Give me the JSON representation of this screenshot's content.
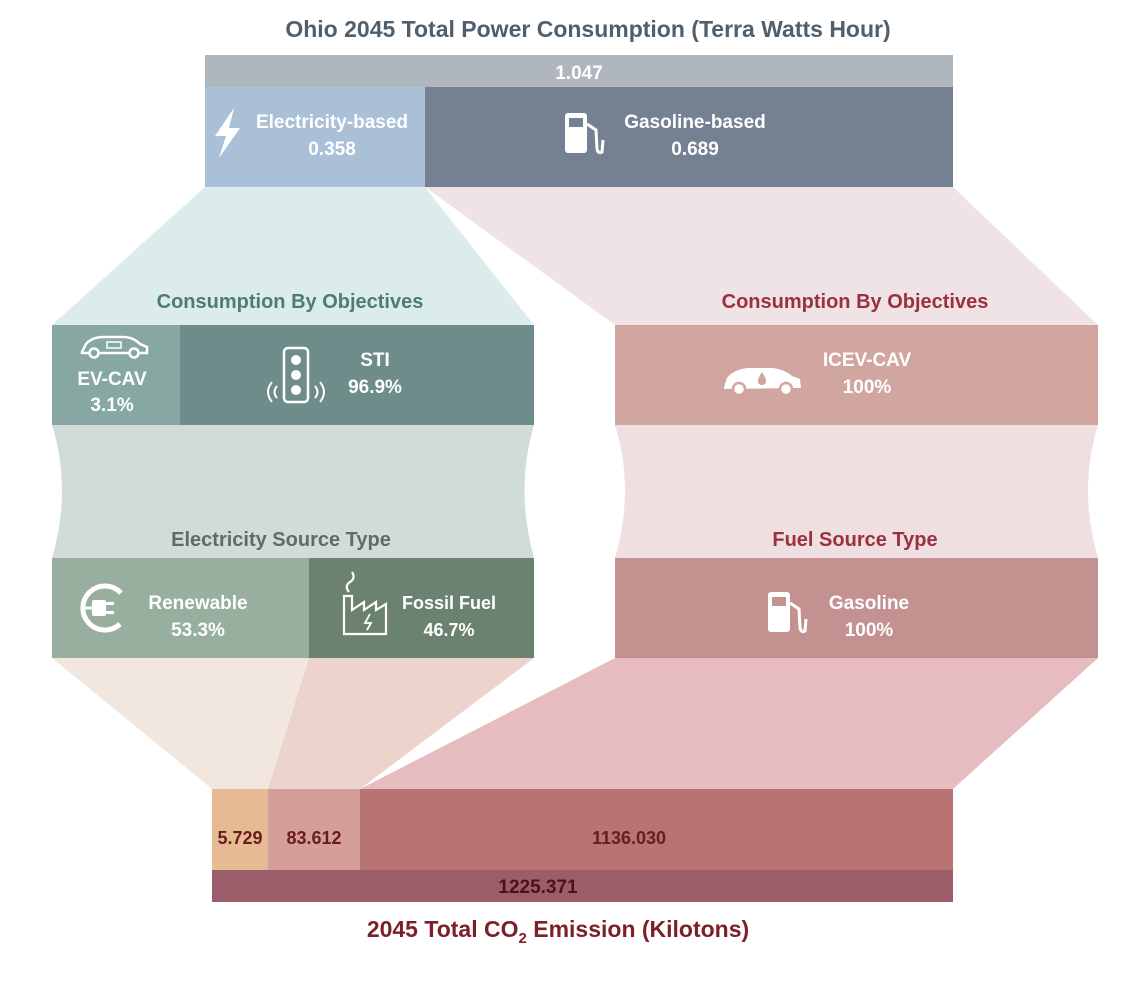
{
  "title": "Ohio 2045 Total Power Consumption (Terra Watts Hour)",
  "total_power": "1.047",
  "electricity_based": {
    "label": "Electricity-based",
    "value": "0.358",
    "icon": "lightning-icon"
  },
  "gasoline_based": {
    "label": "Gasoline-based",
    "value": "0.689",
    "icon": "fuel-pump-icon"
  },
  "left_objectives": {
    "title": "Consumption By Objectives",
    "ev_cav": {
      "label": "EV-CAV",
      "value": "3.1%",
      "icon": "electric-car-icon"
    },
    "sti": {
      "label": "STI",
      "value": "96.9%",
      "icon": "traffic-light-icon"
    }
  },
  "right_objectives": {
    "title": "Consumption By Objectives",
    "icev_cav": {
      "label": "ICEV-CAV",
      "value": "100%",
      "icon": "fuel-car-icon"
    }
  },
  "electricity_source": {
    "title": "Electricity Source Type",
    "renewable": {
      "label": "Renewable",
      "value": "53.3%",
      "icon": "eco-plug-icon"
    },
    "fossil": {
      "label": "Fossil Fuel",
      "value": "46.7%",
      "icon": "power-plant-icon"
    }
  },
  "fuel_source": {
    "title": "Fuel Source Type",
    "gasoline": {
      "label": "Gasoline",
      "value": "100%",
      "icon": "fuel-pump-icon"
    }
  },
  "emissions": {
    "renewable": "5.729",
    "fossil": "83.612",
    "gasoline": "1136.030",
    "total": "1225.371",
    "title_prefix": "2045 Total CO",
    "title_sub": "2",
    "title_suffix": " Emission (Kilotons)"
  },
  "colors": {
    "title_blue": "#4e5f6e",
    "total_bar": "#b0b6be",
    "electricity": "#a9c0d6",
    "gasoline": "#758092",
    "teal_text": "#4f7b77",
    "red_text": "#9a3140",
    "ev_cav": "#86a7a2",
    "sti": "#6e8c89",
    "icev": "#d2a6a0",
    "renewable": "#98ae9f",
    "fossil": "#6c8270",
    "gasoline_src": "#c49191",
    "emis_renew": "#e6bb94",
    "emis_fossil": "#d59e98",
    "emis_gas": "#b87373",
    "emis_total": "#9c5d6a",
    "emis_text": "#6a1d1d"
  }
}
